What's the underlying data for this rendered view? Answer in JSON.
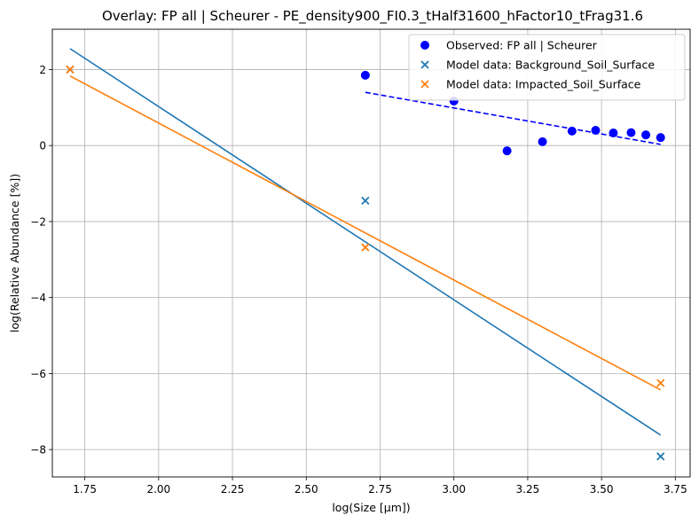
{
  "chart_data": {
    "type": "scatter",
    "title": "Overlay: FP all | Scheurer - PE_density900_FI0.3_tHalf31600_hFactor10_tFrag31.6",
    "xlabel": "log(Size [µm])",
    "ylabel": "log(Relative Abundance [%])",
    "xlim": [
      1.64,
      3.8
    ],
    "ylim": [
      -8.72,
      3.06
    ],
    "xticks": [
      1.75,
      2.0,
      2.25,
      2.5,
      2.75,
      3.0,
      3.25,
      3.5,
      3.75
    ],
    "xtick_labels": [
      "1.75",
      "2.00",
      "2.25",
      "2.50",
      "2.75",
      "3.00",
      "3.25",
      "3.50",
      "3.75"
    ],
    "yticks": [
      -8,
      -6,
      -4,
      -2,
      0,
      2
    ],
    "ytick_labels": [
      "−8",
      "−6",
      "−4",
      "−2",
      "0",
      "2"
    ],
    "grid": true,
    "legend_position": "top-right",
    "series": [
      {
        "name": "Observed: FP all | Scheurer",
        "kind": "scatter",
        "marker": "circle",
        "color": "#0000ff",
        "x": [
          2.7,
          3.0,
          3.18,
          3.3,
          3.4,
          3.48,
          3.54,
          3.6,
          3.65,
          3.7
        ],
        "y": [
          1.85,
          1.17,
          -0.14,
          0.1,
          0.38,
          0.4,
          0.33,
          0.34,
          0.28,
          0.21
        ]
      },
      {
        "name": "",
        "kind": "line",
        "dashed": true,
        "color": "#0000ff",
        "x": [
          2.7,
          3.7
        ],
        "y": [
          1.4,
          0.03
        ]
      },
      {
        "name": "Model data: Background_Soil_Surface",
        "kind": "scatter",
        "marker": "x",
        "color": "#1f77b4",
        "x": [
          1.7,
          2.7,
          3.7
        ],
        "y": [
          2.0,
          -1.45,
          -8.18
        ]
      },
      {
        "name": "",
        "kind": "line",
        "dashed": false,
        "color": "#1f77b4",
        "x": [
          1.7,
          3.7
        ],
        "y": [
          2.55,
          -7.62
        ]
      },
      {
        "name": "Model data: Impacted_Soil_Surface",
        "kind": "scatter",
        "marker": "x",
        "color": "#ff7f0e",
        "x": [
          1.7,
          2.7,
          3.7
        ],
        "y": [
          2.0,
          -2.68,
          -6.25
        ]
      },
      {
        "name": "",
        "kind": "line",
        "dashed": false,
        "color": "#ff7f0e",
        "x": [
          1.7,
          3.7
        ],
        "y": [
          1.83,
          -6.43
        ]
      }
    ],
    "legend": [
      {
        "label": "Observed: FP all | Scheurer",
        "marker": "circle",
        "color": "#0000ff"
      },
      {
        "label": "Model data: Background_Soil_Surface",
        "marker": "x",
        "color": "#1f77b4"
      },
      {
        "label": "Model data: Impacted_Soil_Surface",
        "marker": "x",
        "color": "#ff7f0e"
      }
    ]
  }
}
